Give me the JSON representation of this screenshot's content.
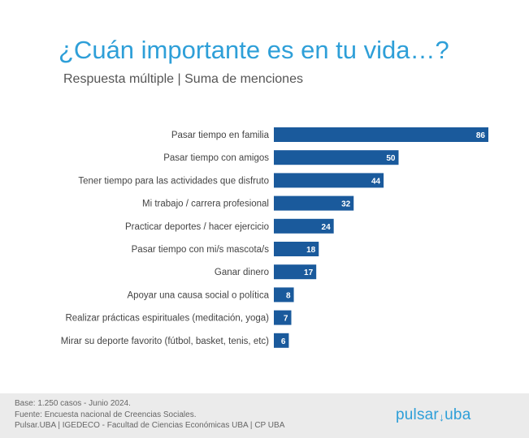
{
  "header": {
    "title": "¿Cuán importante es en tu vida…?",
    "subtitle": "Respuesta múltiple | Suma de menciones"
  },
  "chart_data": {
    "type": "bar",
    "orientation": "horizontal",
    "categories": [
      "Pasar tiempo en familia",
      "Pasar tiempo con amigos",
      "Tener tiempo para las actividades que disfruto",
      "Mi trabajo / carrera profesional",
      "Practicar deportes / hacer ejercicio",
      "Pasar tiempo con mi/s mascota/s",
      "Ganar dinero",
      "Apoyar una causa social o política",
      "Realizar prácticas espirituales (meditación, yoga)",
      "Mirar su deporte favorito (fútbol, basket, tenis, etc)"
    ],
    "values": [
      86,
      50,
      44,
      32,
      24,
      18,
      17,
      8,
      7,
      6
    ],
    "title": "¿Cuán importante es en tu vida…?",
    "xlabel": "",
    "ylabel": "",
    "xlim": [
      0,
      86
    ],
    "bar_color": "#1a5a9c",
    "label_color": "#ffffff"
  },
  "footer": {
    "lines": [
      "Base: 1.250 casos - Junio 2024.",
      "Fuente: Encuesta nacional de Creencias Sociales.",
      "Pulsar.UBA | IGEDECO - Facultad de Ciencias Económicas UBA | CP UBA"
    ],
    "logo_left": "pulsar",
    "logo_right": "uba"
  }
}
